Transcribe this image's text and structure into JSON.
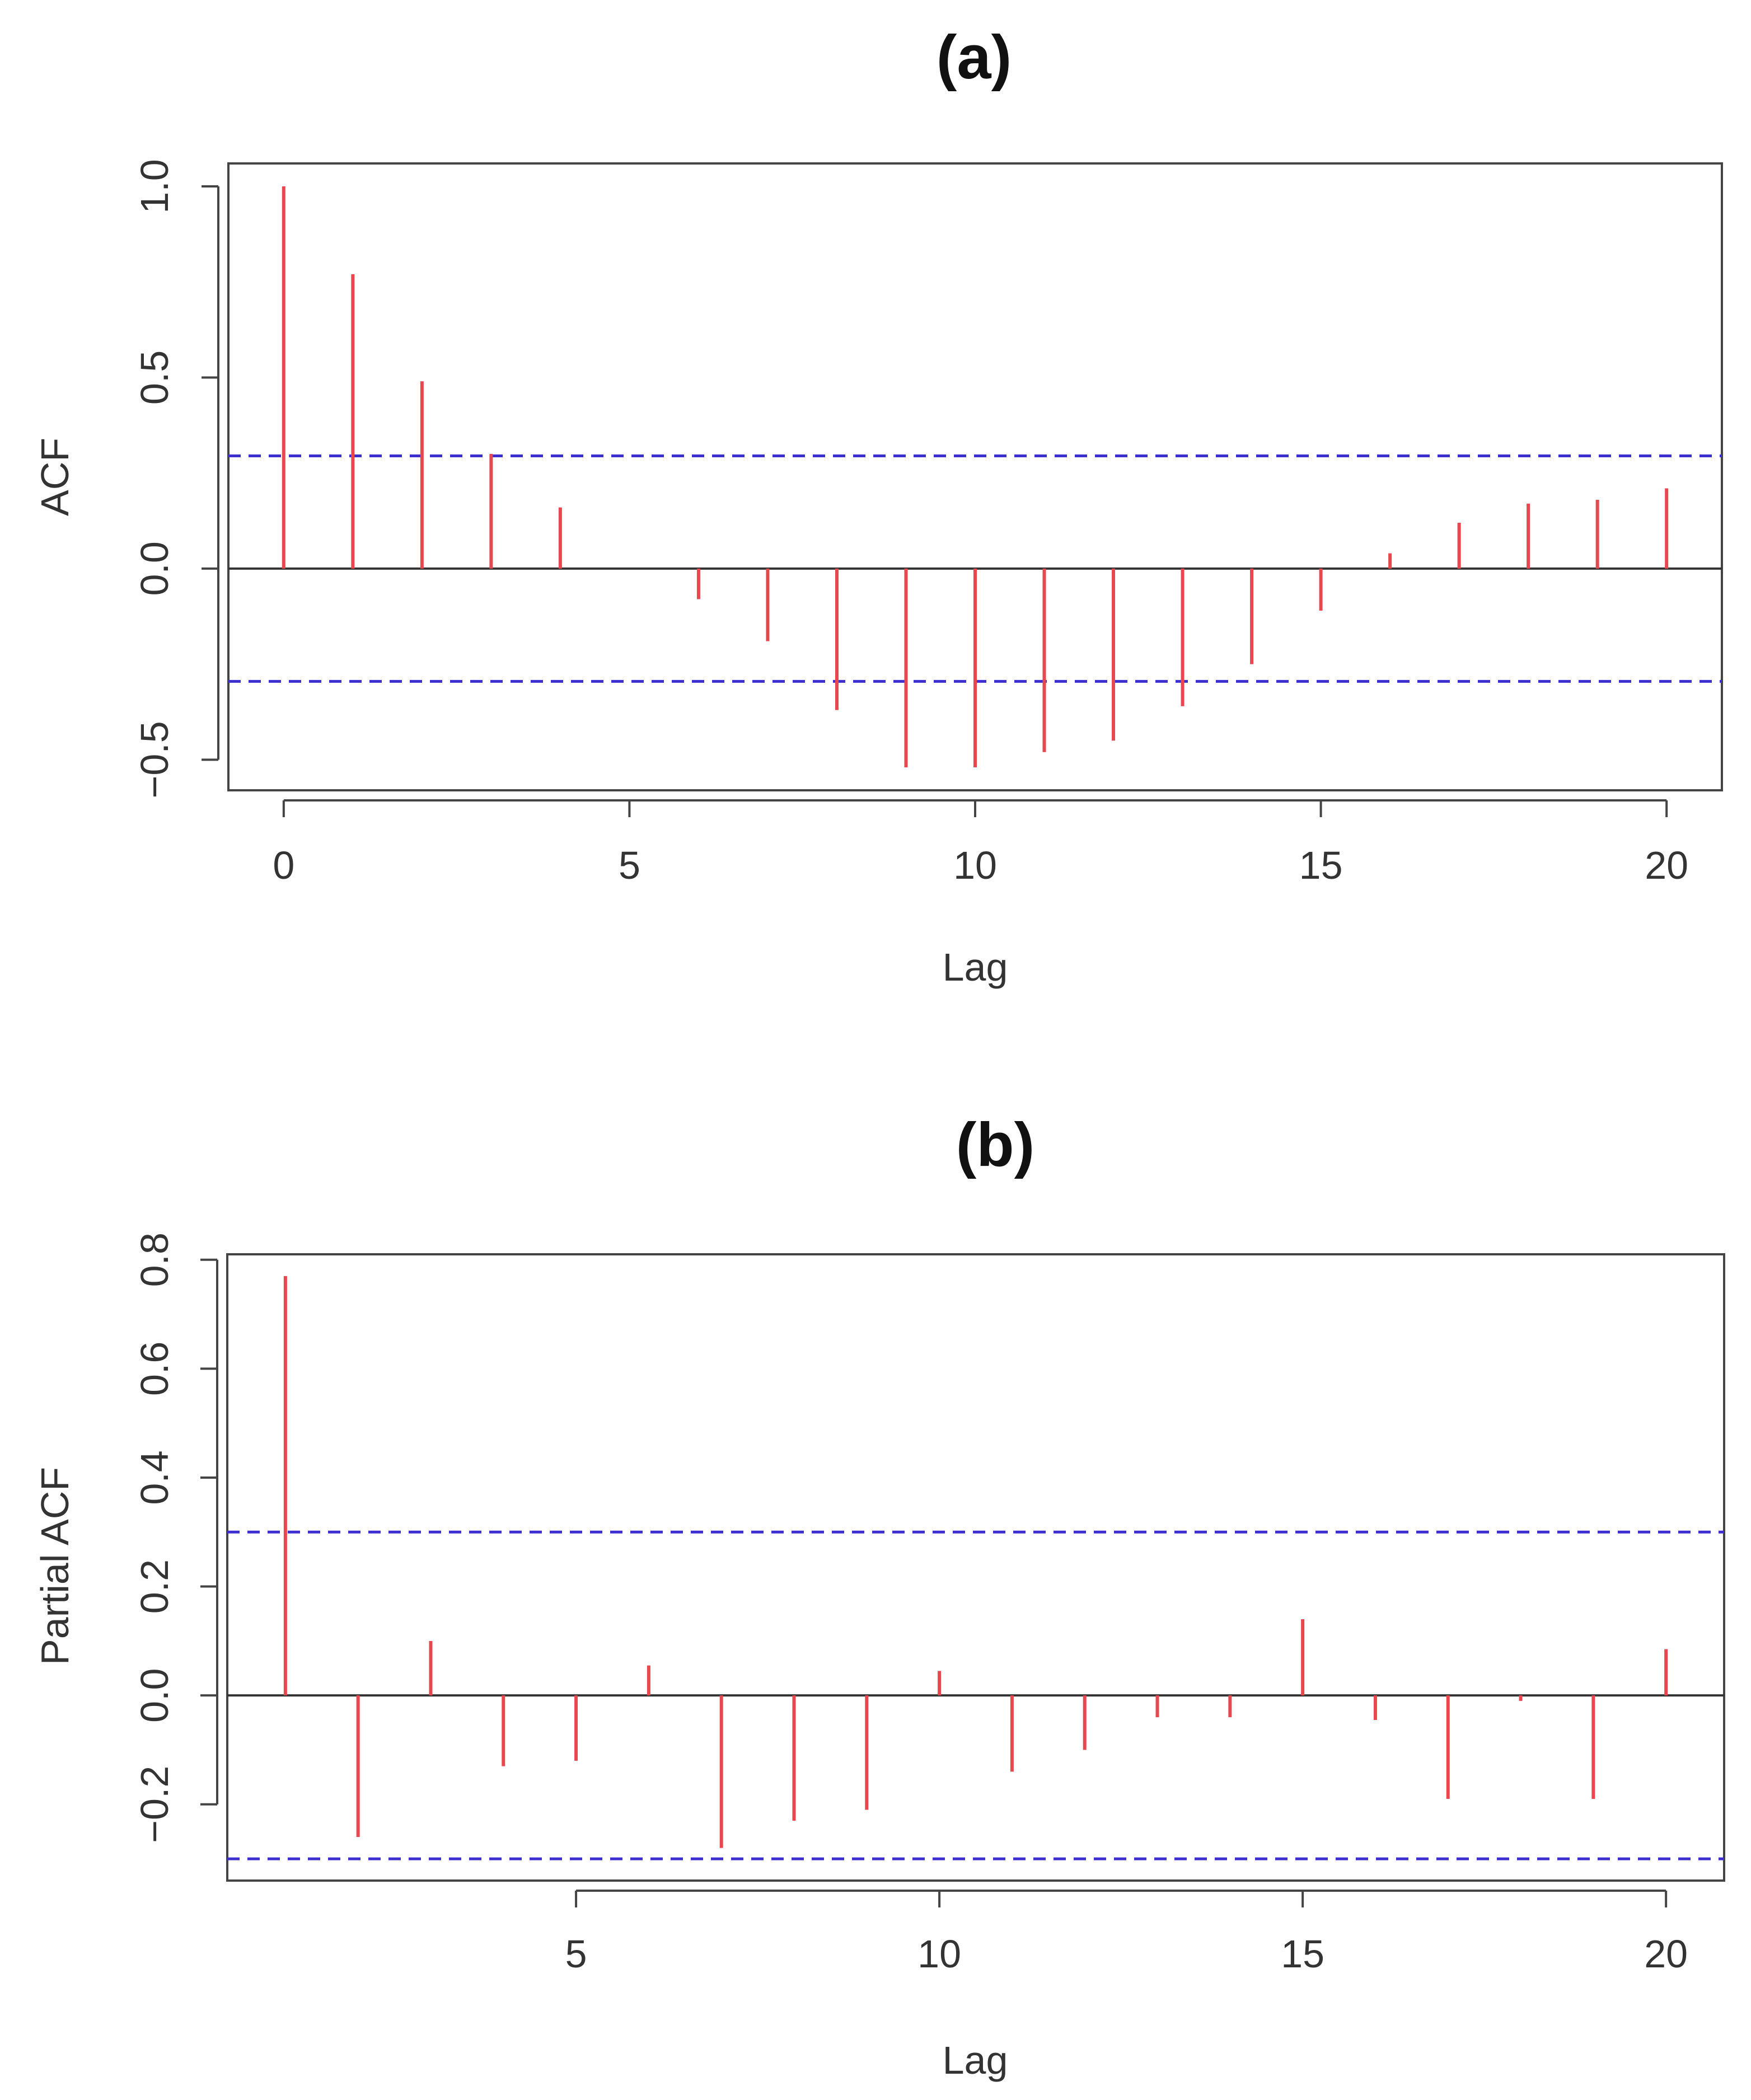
{
  "chart_data": [
    {
      "type": "bar",
      "subtype": "acf-lollipop",
      "title": "(a)",
      "xlabel": "Lag",
      "ylabel": "ACF",
      "xlim": [
        -0.8,
        20.8
      ],
      "ylim": [
        -0.58,
        1.06
      ],
      "xticks": [
        0,
        5,
        10,
        15,
        20
      ],
      "xtick_labels": [
        "0",
        "5",
        "10",
        "15",
        "20"
      ],
      "yticks": [
        -0.5,
        0.0,
        0.5,
        1.0
      ],
      "ytick_labels": [
        "−0.5",
        "0.0",
        "0.5",
        "1.0"
      ],
      "confidence_band": [
        -0.295,
        0.295
      ],
      "x": [
        0,
        1,
        2,
        3,
        4,
        5,
        6,
        7,
        8,
        9,
        10,
        11,
        12,
        13,
        14,
        15,
        16,
        17,
        18,
        19,
        20
      ],
      "values": [
        1.0,
        0.77,
        0.49,
        0.3,
        0.16,
        0.0,
        -0.08,
        -0.19,
        -0.37,
        -0.52,
        -0.52,
        -0.48,
        -0.45,
        -0.36,
        -0.25,
        -0.11,
        0.04,
        0.12,
        0.17,
        0.18,
        0.21
      ],
      "colors": {
        "bar": "#e8474f",
        "band": "#3b2fd0",
        "zero": "#333333",
        "frame": "#444444"
      }
    },
    {
      "type": "bar",
      "subtype": "pacf-lollipop",
      "title": "(b)",
      "xlabel": "Lag",
      "ylabel": "Partial ACF",
      "xlim": [
        0.2,
        20.8
      ],
      "ylim": [
        -0.34,
        0.81
      ],
      "xticks": [
        5,
        10,
        15,
        20
      ],
      "xtick_labels": [
        "5",
        "10",
        "15",
        "20"
      ],
      "yticks": [
        -0.2,
        0.0,
        0.2,
        0.4,
        0.6,
        0.8
      ],
      "ytick_labels": [
        "−0.2",
        "0.0",
        "0.2",
        "0.4",
        "0.6",
        "0.8"
      ],
      "confidence_band": [
        -0.3,
        0.3
      ],
      "x": [
        1,
        2,
        3,
        4,
        5,
        6,
        7,
        8,
        9,
        10,
        11,
        12,
        13,
        14,
        15,
        16,
        17,
        18,
        19,
        20
      ],
      "values": [
        0.77,
        -0.26,
        0.1,
        -0.13,
        -0.12,
        0.055,
        -0.28,
        -0.23,
        -0.21,
        0.045,
        -0.14,
        -0.1,
        -0.04,
        -0.04,
        0.14,
        -0.045,
        -0.19,
        -0.01,
        -0.19,
        0.085
      ],
      "colors": {
        "bar": "#e8474f",
        "band": "#3b2fd0",
        "zero": "#333333",
        "frame": "#444444"
      }
    }
  ]
}
